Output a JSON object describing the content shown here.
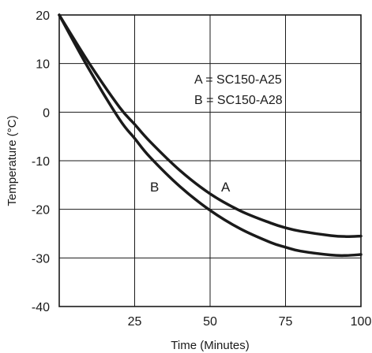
{
  "chart_data": {
    "type": "line",
    "title": "",
    "xlabel": "Time (Minutes)",
    "ylabel": "Temperature (°C)",
    "xlim": [
      0,
      100
    ],
    "ylim": [
      -40,
      20
    ],
    "xticks": [
      25,
      50,
      75,
      100
    ],
    "xtick_labels": [
      "25",
      "50",
      "75",
      "100"
    ],
    "yticks": [
      20,
      10,
      0,
      -10,
      -20,
      -30,
      -40
    ],
    "ytick_labels": [
      "20",
      "10",
      "0",
      "-10",
      "-20",
      "-30",
      "-40"
    ],
    "grid": true,
    "legend": {
      "placement": "top-right",
      "entries": [
        "A = SC150-A25",
        "B = SC150-A28"
      ]
    },
    "series": [
      {
        "name": "A",
        "label": "A",
        "x": [
          0,
          10,
          20,
          25,
          30,
          40,
          50,
          60,
          70,
          75,
          80,
          90,
          95,
          100
        ],
        "y": [
          20,
          10,
          1,
          -2.5,
          -6,
          -12,
          -16.8,
          -20.3,
          -22.8,
          -23.8,
          -24.5,
          -25.4,
          -25.6,
          -25.5
        ]
      },
      {
        "name": "B",
        "label": "B",
        "x": [
          0,
          10,
          20,
          25,
          30,
          40,
          50,
          60,
          70,
          75,
          80,
          90,
          95,
          100
        ],
        "y": [
          20,
          8.7,
          -1.5,
          -5.4,
          -9.2,
          -15.3,
          -20.2,
          -24,
          -26.8,
          -27.8,
          -28.6,
          -29.4,
          -29.5,
          -29.3
        ]
      }
    ]
  }
}
